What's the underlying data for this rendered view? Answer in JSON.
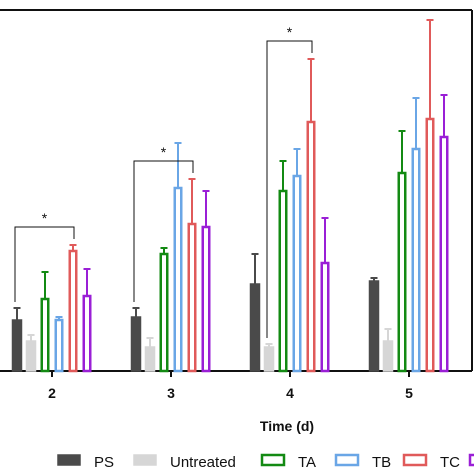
{
  "chart_data": {
    "type": "bar",
    "title": "",
    "xlabel": "Time (d)",
    "ylabel": "",
    "ylim": [
      0,
      100
    ],
    "categories": [
      "2",
      "3",
      "4",
      "5"
    ],
    "series": [
      {
        "name": "PS",
        "color": "#4a4a4a",
        "fill": "#4a4a4a",
        "values": [
          17,
          18,
          29,
          30
        ],
        "errors": [
          4,
          3,
          10,
          1
        ]
      },
      {
        "name": "Untreated",
        "color": "#d6d6d6",
        "fill": "#d6d6d6",
        "values": [
          10,
          8,
          8,
          10
        ],
        "errors": [
          2,
          3,
          1,
          4
        ]
      },
      {
        "name": "TA",
        "color": "#138a13",
        "fill": "#ffffff",
        "values": [
          24,
          39,
          60,
          66
        ],
        "errors": [
          9,
          2,
          10,
          14
        ]
      },
      {
        "name": "TB",
        "color": "#6aa6e6",
        "fill": "#ffffff",
        "values": [
          17,
          61,
          65,
          74
        ],
        "errors": [
          1,
          15,
          9,
          17
        ]
      },
      {
        "name": "TC",
        "color": "#e05a5a",
        "fill": "#ffffff",
        "values": [
          40,
          49,
          83,
          84
        ],
        "errors": [
          2,
          15,
          21,
          33
        ]
      },
      {
        "name": "",
        "color": "#9a1fd6",
        "fill": "#ffffff",
        "values": [
          25,
          48,
          36,
          78
        ],
        "errors": [
          9,
          12,
          15,
          14
        ]
      }
    ],
    "significance": [
      {
        "category": "2",
        "from_series": 0,
        "to_series": 4,
        "label": "*"
      },
      {
        "category": "3",
        "from_series": 0,
        "to_series": 4,
        "label": "*"
      },
      {
        "category": "4",
        "from_series": 1,
        "to_series": 4,
        "label": "*"
      }
    ],
    "legend_position": "bottom",
    "grid": false
  }
}
